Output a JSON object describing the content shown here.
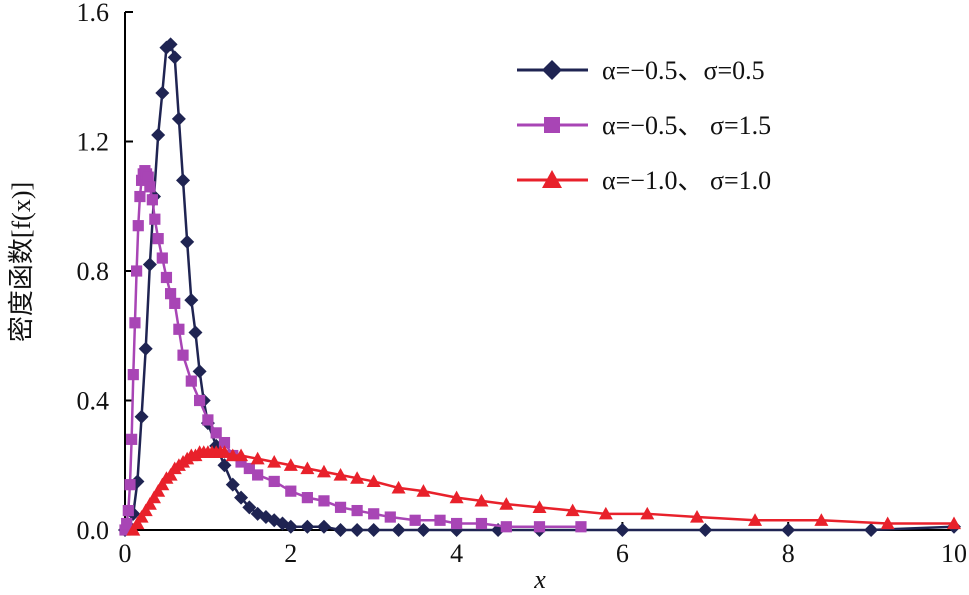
{
  "chart_data": {
    "type": "line",
    "title": "",
    "xlabel": "x",
    "ylabel": "密度函数[f(x)]",
    "xlim": [
      0,
      10
    ],
    "ylim": [
      0,
      1.6
    ],
    "x_ticks": [
      0,
      2,
      4,
      6,
      8,
      10
    ],
    "x_tick_labels": [
      "0",
      "2",
      "4",
      "6",
      "8",
      "10"
    ],
    "y_ticks": [
      0.0,
      0.4,
      0.8,
      1.2,
      1.6
    ],
    "y_tick_labels": [
      "0.0",
      "0.4",
      "0.8",
      "1.2",
      "1.6"
    ],
    "grid": false,
    "legend_position": "top-right",
    "series": [
      {
        "name": "α=−0.5、σ=0.5",
        "color": "#1f2452",
        "marker": "diamond",
        "x": [
          0.0,
          0.05,
          0.1,
          0.15,
          0.2,
          0.25,
          0.3,
          0.35,
          0.4,
          0.45,
          0.5,
          0.55,
          0.6,
          0.65,
          0.7,
          0.75,
          0.8,
          0.85,
          0.9,
          0.95,
          1.0,
          1.1,
          1.2,
          1.3,
          1.4,
          1.5,
          1.6,
          1.7,
          1.8,
          1.9,
          2.0,
          2.2,
          2.4,
          2.6,
          2.8,
          3.0,
          3.3,
          3.6,
          4.0,
          4.5,
          5.0,
          6.0,
          7.0,
          8.0,
          9.0,
          10.0
        ],
        "y": [
          0.0,
          0.01,
          0.05,
          0.15,
          0.35,
          0.56,
          0.82,
          1.03,
          1.22,
          1.35,
          1.49,
          1.5,
          1.46,
          1.27,
          1.08,
          0.89,
          0.71,
          0.61,
          0.49,
          0.4,
          0.33,
          0.26,
          0.2,
          0.14,
          0.1,
          0.07,
          0.05,
          0.04,
          0.03,
          0.02,
          0.01,
          0.01,
          0.01,
          0.0,
          0.0,
          0.0,
          0.0,
          0.0,
          0.0,
          0.0,
          0.0,
          0.0,
          0.0,
          0.0,
          0.0,
          0.01
        ]
      },
      {
        "name": "α=−0.5、 σ=1.5",
        "color": "#a845b5",
        "marker": "square",
        "x": [
          0.0,
          0.02,
          0.04,
          0.06,
          0.08,
          0.1,
          0.12,
          0.14,
          0.16,
          0.18,
          0.2,
          0.22,
          0.24,
          0.26,
          0.28,
          0.3,
          0.33,
          0.36,
          0.4,
          0.45,
          0.5,
          0.55,
          0.6,
          0.65,
          0.7,
          0.8,
          0.9,
          1.0,
          1.1,
          1.2,
          1.3,
          1.4,
          1.5,
          1.6,
          1.8,
          2.0,
          2.2,
          2.4,
          2.6,
          2.8,
          3.0,
          3.2,
          3.5,
          3.8,
          4.0,
          4.3,
          4.6,
          5.0,
          5.5
        ],
        "y": [
          0.0,
          0.02,
          0.06,
          0.14,
          0.28,
          0.48,
          0.64,
          0.8,
          0.94,
          1.03,
          1.08,
          1.1,
          1.11,
          1.1,
          1.09,
          1.06,
          1.02,
          0.96,
          0.9,
          0.84,
          0.78,
          0.73,
          0.7,
          0.62,
          0.54,
          0.46,
          0.4,
          0.34,
          0.3,
          0.27,
          0.23,
          0.21,
          0.19,
          0.17,
          0.15,
          0.12,
          0.1,
          0.09,
          0.07,
          0.06,
          0.05,
          0.04,
          0.03,
          0.03,
          0.02,
          0.02,
          0.01,
          0.01,
          0.01
        ]
      },
      {
        "name": "α=−1.0、 σ=1.0",
        "color": "#e8212b",
        "marker": "triangle",
        "x": [
          0.1,
          0.15,
          0.2,
          0.25,
          0.3,
          0.35,
          0.4,
          0.45,
          0.5,
          0.55,
          0.6,
          0.65,
          0.7,
          0.75,
          0.8,
          0.85,
          0.9,
          0.95,
          1.0,
          1.05,
          1.1,
          1.15,
          1.2,
          1.3,
          1.4,
          1.6,
          1.8,
          2.0,
          2.2,
          2.4,
          2.6,
          2.8,
          3.0,
          3.3,
          3.6,
          4.0,
          4.3,
          4.6,
          5.0,
          5.4,
          5.8,
          6.3,
          6.9,
          7.6,
          8.4,
          9.2,
          10.0
        ],
        "y": [
          0.0,
          0.02,
          0.04,
          0.06,
          0.08,
          0.1,
          0.12,
          0.14,
          0.16,
          0.17,
          0.19,
          0.2,
          0.21,
          0.22,
          0.23,
          0.23,
          0.24,
          0.24,
          0.24,
          0.24,
          0.24,
          0.24,
          0.24,
          0.23,
          0.23,
          0.22,
          0.21,
          0.2,
          0.19,
          0.18,
          0.17,
          0.16,
          0.15,
          0.13,
          0.12,
          0.1,
          0.09,
          0.08,
          0.07,
          0.06,
          0.05,
          0.05,
          0.04,
          0.03,
          0.03,
          0.02,
          0.02
        ]
      }
    ]
  }
}
